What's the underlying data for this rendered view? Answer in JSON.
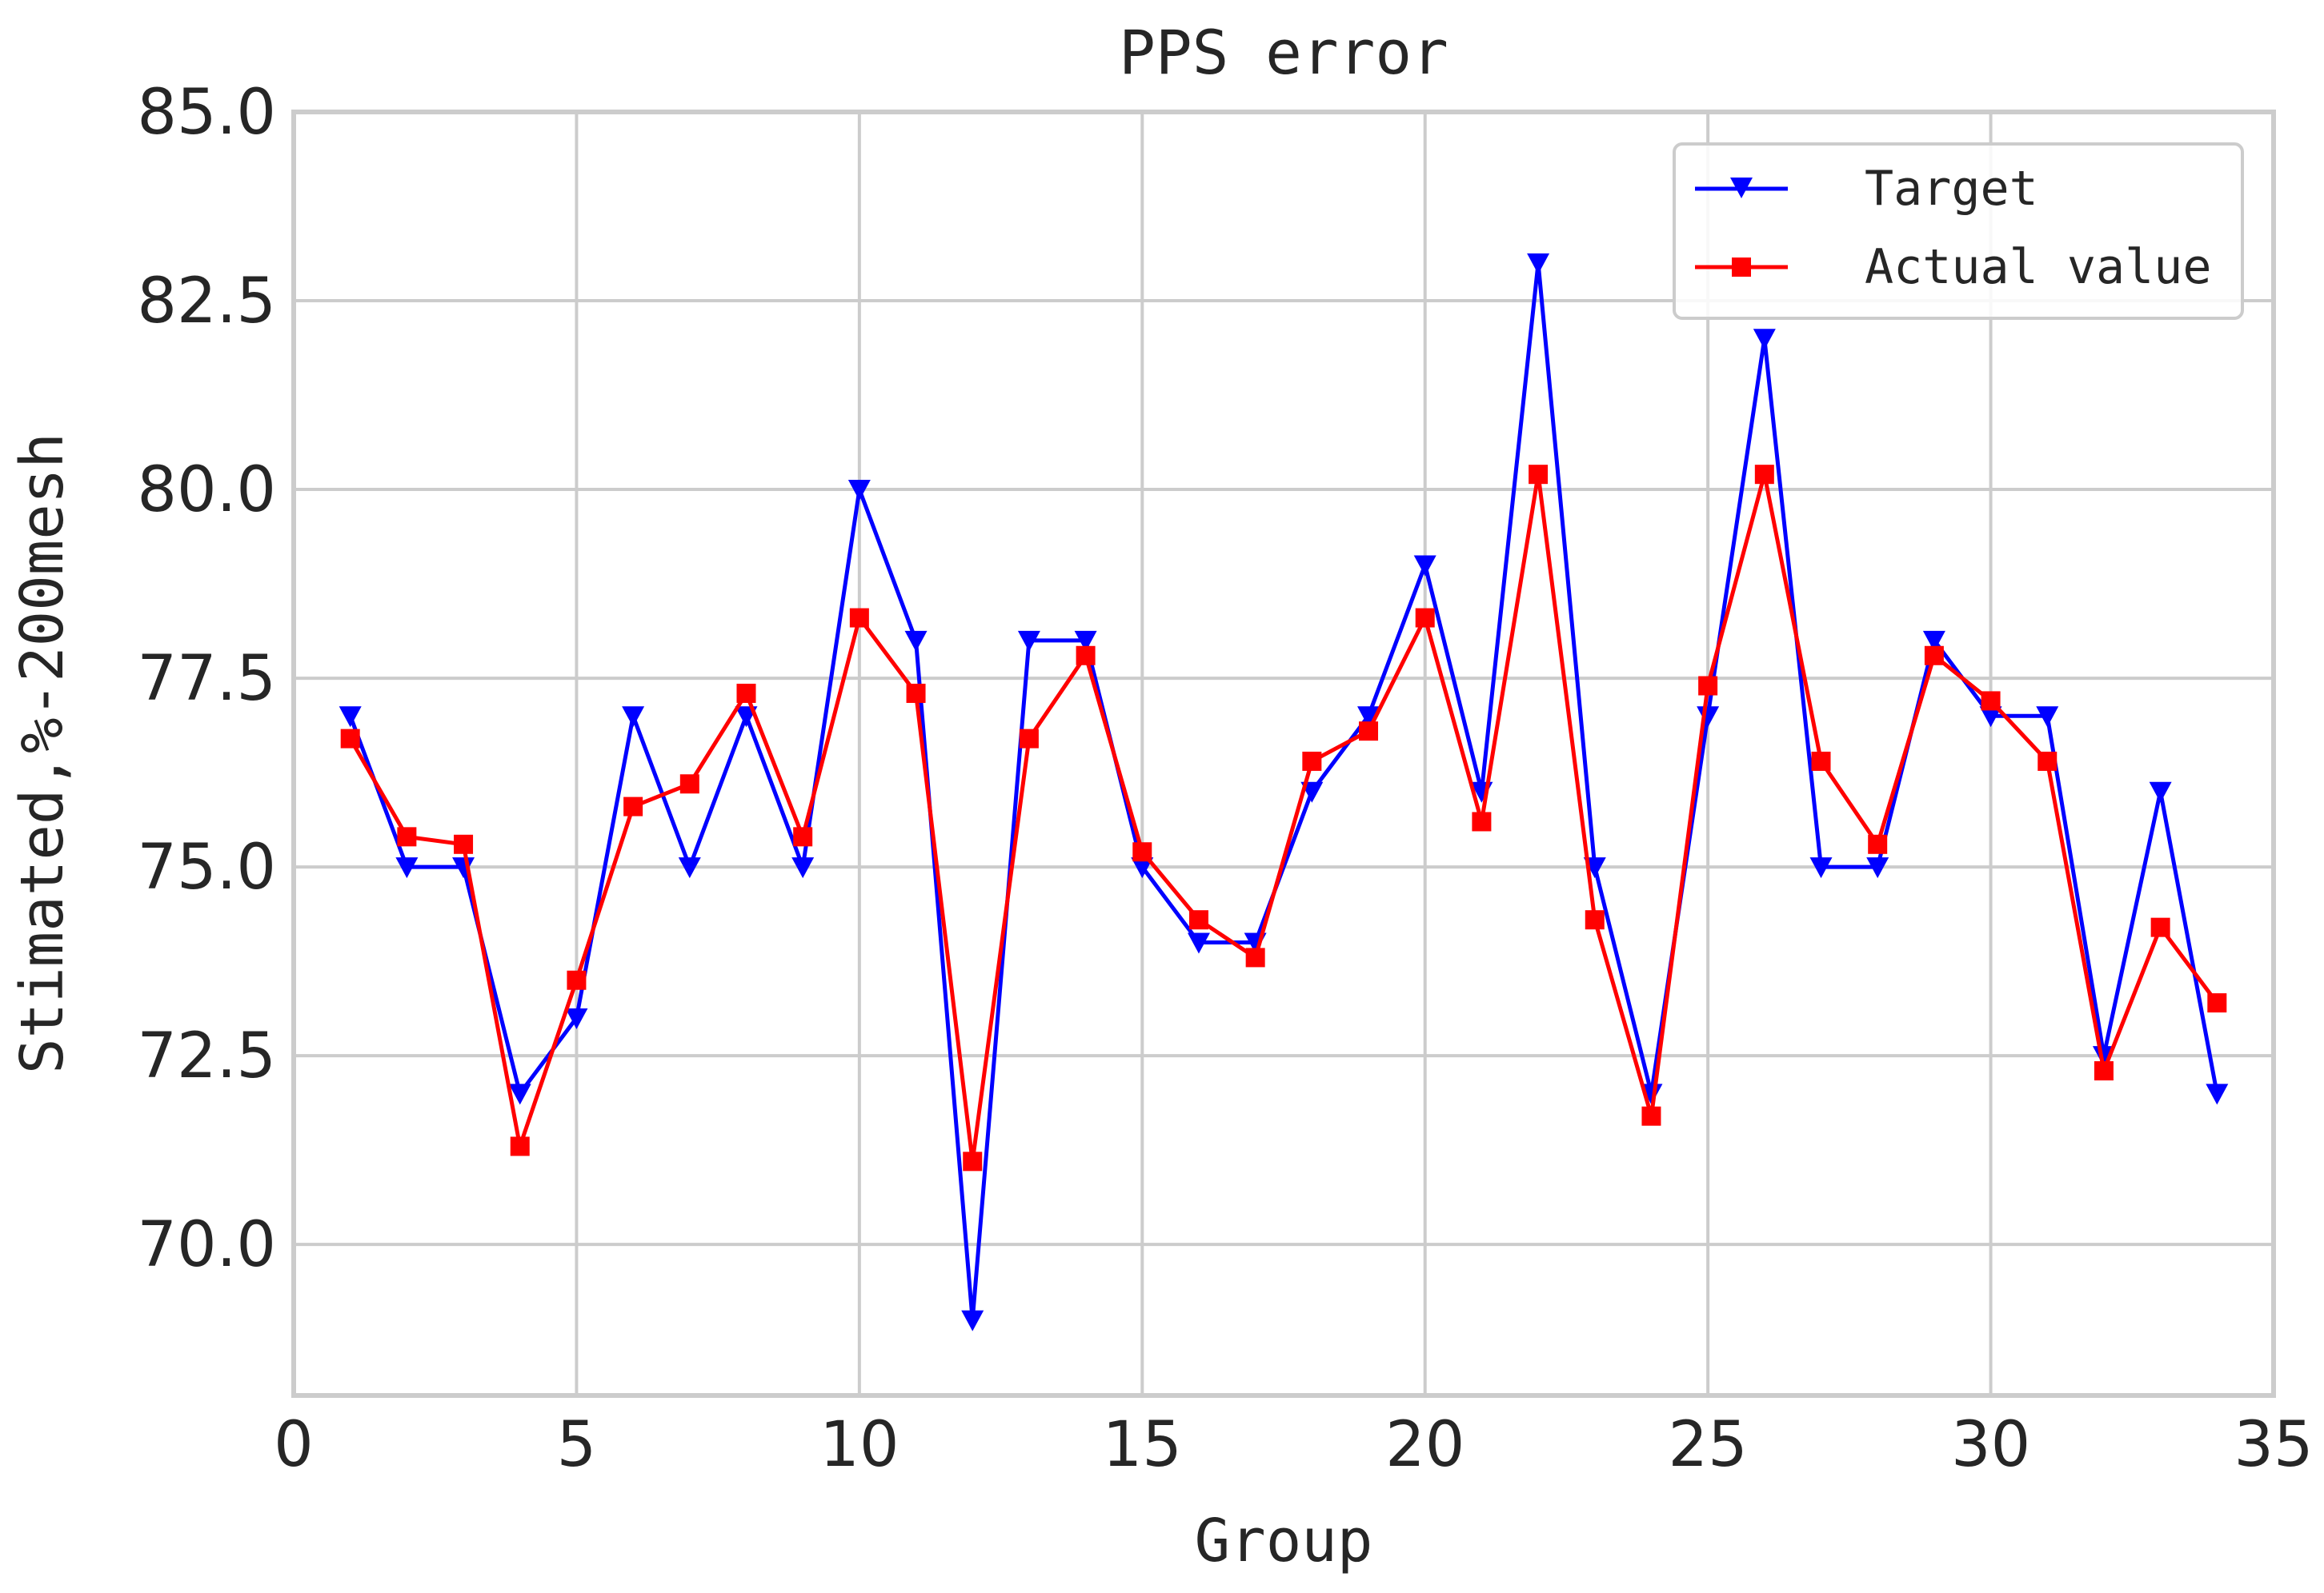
{
  "chart_data": {
    "type": "line",
    "title": "PPS error",
    "xlabel": "Group",
    "ylabel": "Stimated,%-200mesh",
    "xlim": [
      0,
      35
    ],
    "ylim": [
      68.0,
      85.0
    ],
    "x_ticks": [
      0,
      5,
      10,
      15,
      20,
      25,
      30,
      35
    ],
    "y_ticks": [
      70.0,
      72.5,
      75.0,
      77.5,
      80.0,
      82.5,
      85.0
    ],
    "x_tick_labels": [
      "0",
      "5",
      "10",
      "15",
      "20",
      "25",
      "30",
      "35"
    ],
    "y_tick_labels": [
      "70.0",
      "72.5",
      "75.0",
      "77.5",
      "80.0",
      "82.5",
      "85.0"
    ],
    "grid": true,
    "legend_position": "top-right",
    "x": [
      1,
      2,
      3,
      4,
      5,
      6,
      7,
      8,
      9,
      10,
      11,
      12,
      13,
      14,
      15,
      16,
      17,
      18,
      19,
      20,
      21,
      22,
      23,
      24,
      25,
      26,
      27,
      28,
      29,
      30,
      31,
      32,
      33,
      34
    ],
    "series": [
      {
        "name": "Target",
        "color": "#0000ff",
        "marker": "triangle-down",
        "values": [
          77.0,
          75.0,
          75.0,
          72.0,
          73.0,
          77.0,
          75.0,
          77.0,
          75.0,
          80.0,
          78.0,
          69.0,
          78.0,
          78.0,
          75.0,
          74.0,
          74.0,
          76.0,
          77.0,
          79.0,
          76.0,
          83.0,
          75.0,
          72.0,
          77.0,
          82.0,
          75.0,
          75.0,
          78.0,
          77.0,
          77.0,
          72.5,
          76.0,
          72.0
        ]
      },
      {
        "name": "Actual value",
        "color": "#ff0000",
        "marker": "square",
        "values": [
          76.7,
          75.4,
          75.3,
          71.3,
          73.5,
          75.8,
          76.1,
          77.3,
          75.4,
          78.3,
          77.3,
          71.1,
          76.7,
          77.8,
          75.2,
          74.3,
          73.8,
          76.4,
          76.8,
          78.3,
          75.6,
          80.2,
          74.3,
          71.7,
          77.4,
          80.2,
          76.4,
          75.3,
          77.8,
          77.2,
          76.4,
          72.3,
          74.2,
          73.2
        ]
      }
    ]
  }
}
